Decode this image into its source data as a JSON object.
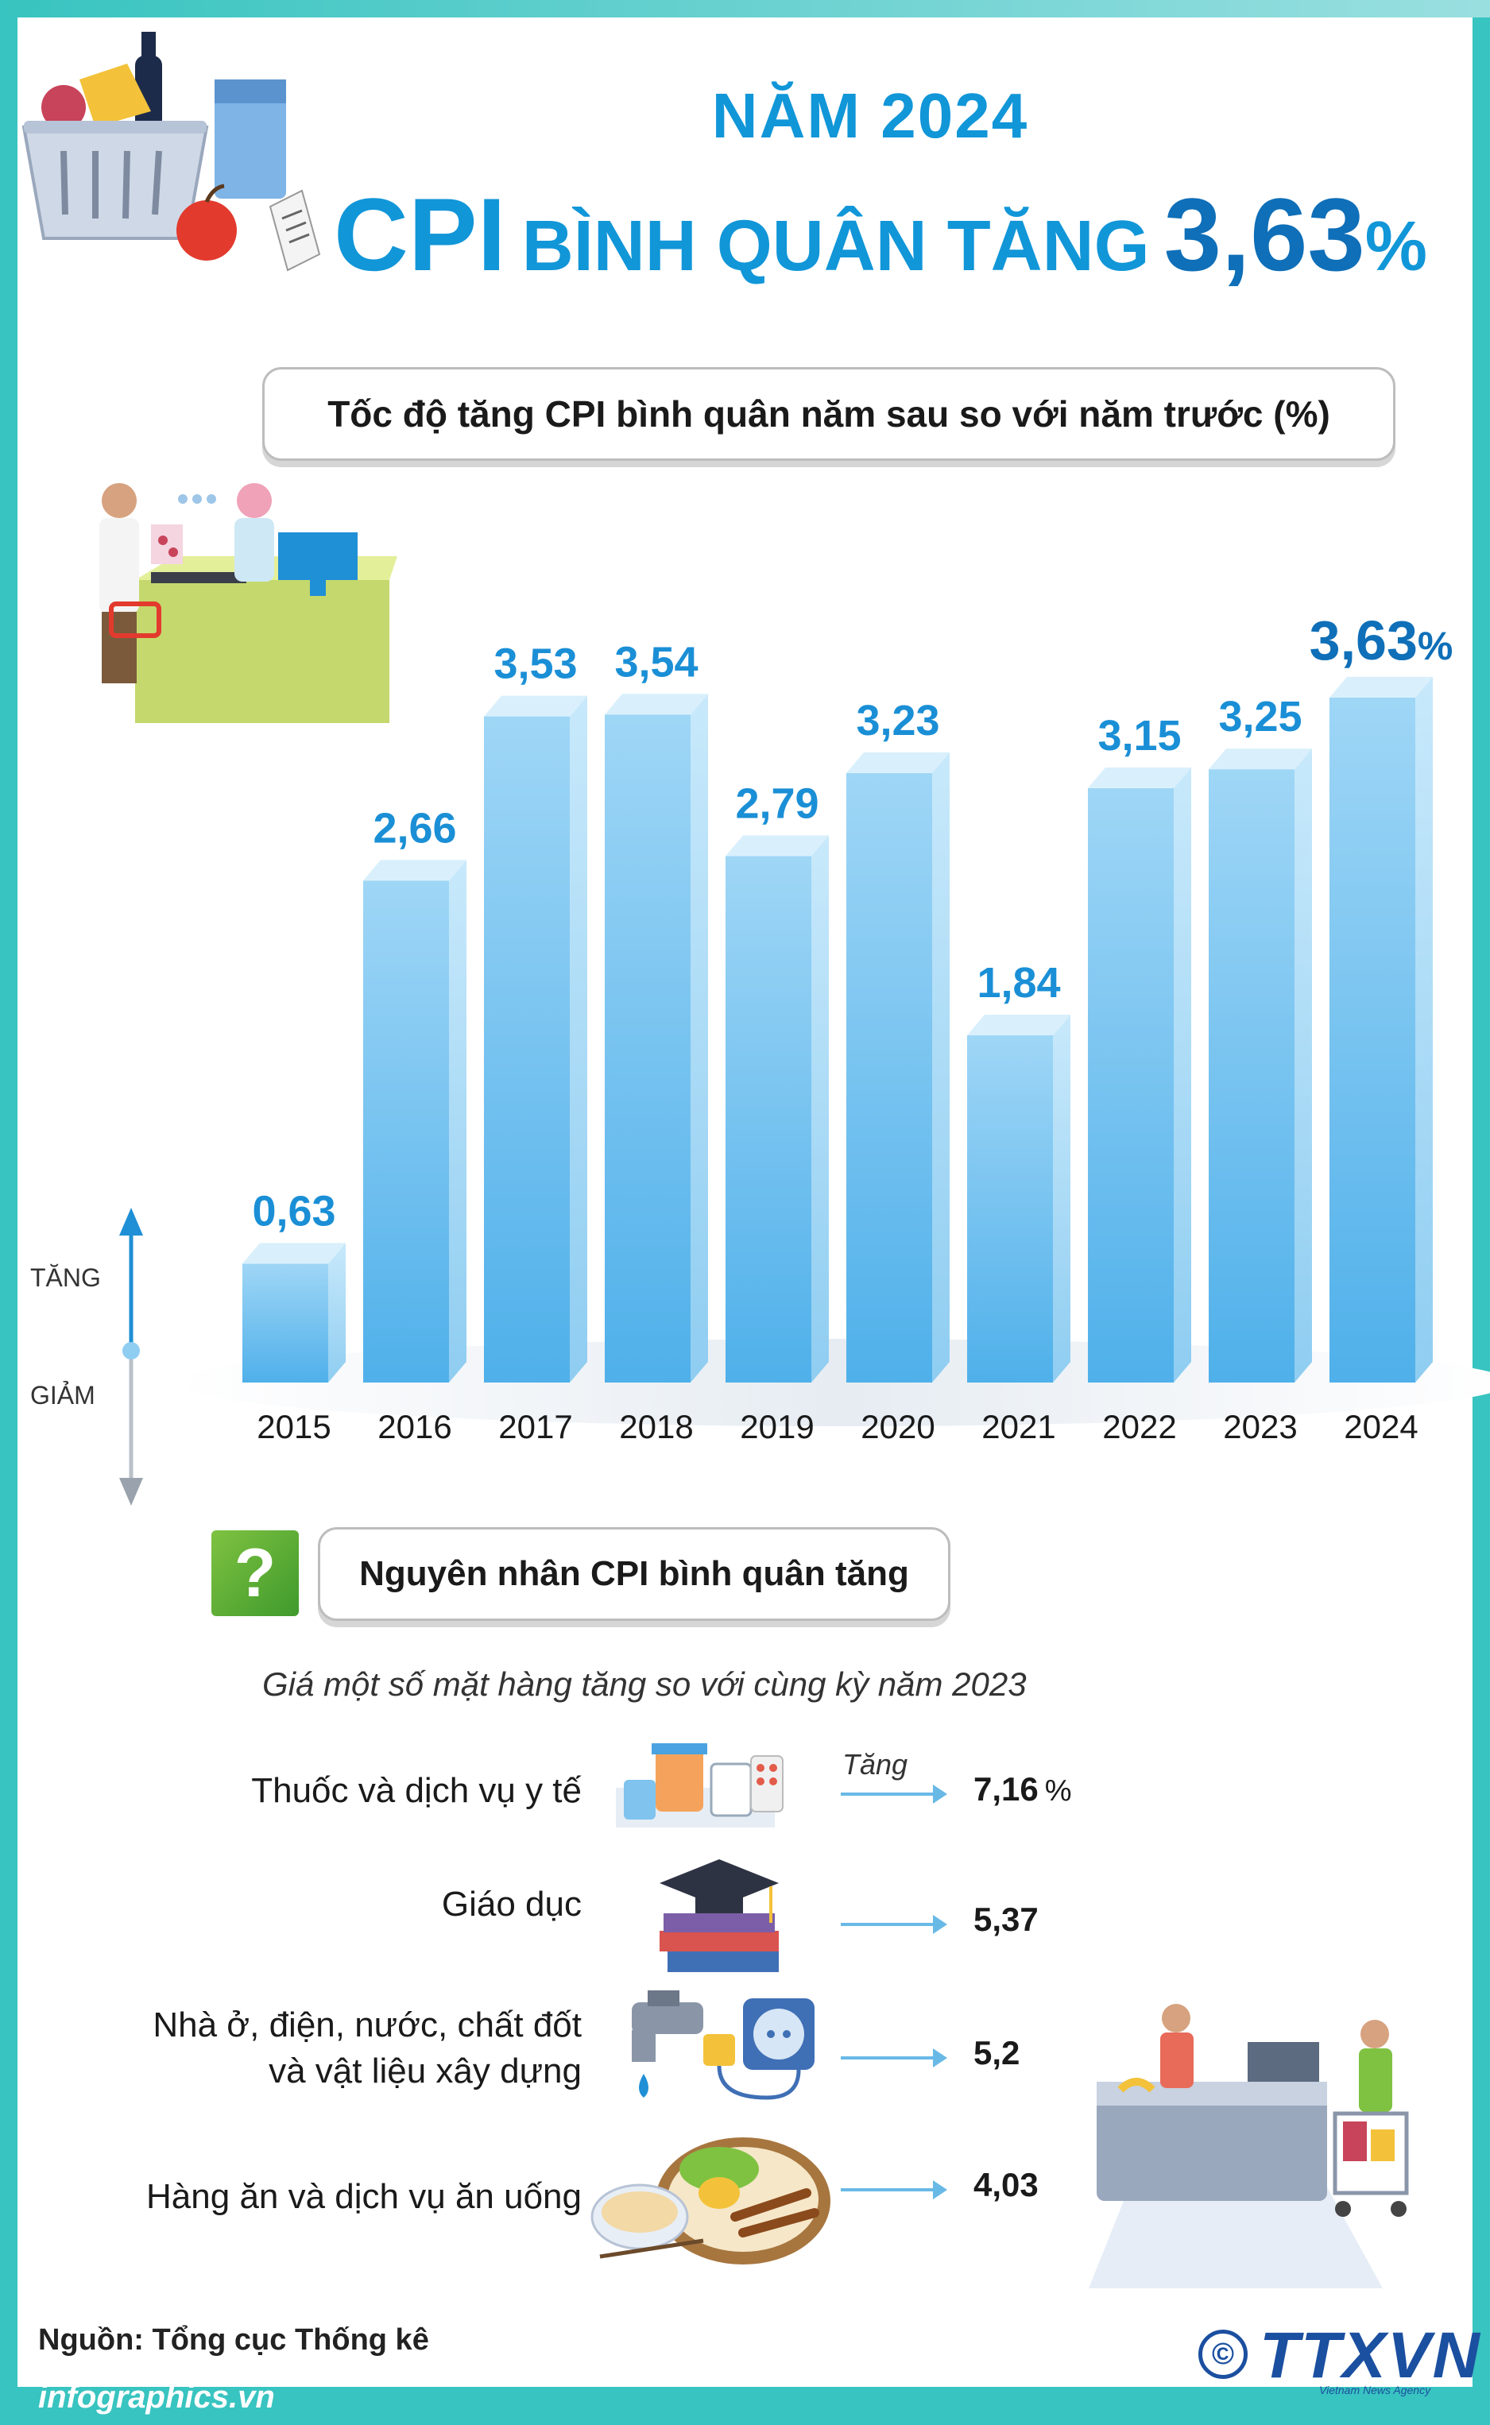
{
  "header": {
    "year_title": "NĂM 2024",
    "headline_cpi": "CPI",
    "headline_mid": "BÌNH QUÂN TĂNG",
    "headline_value": "3,63",
    "headline_pct": "%"
  },
  "chart_title": "Tốc độ tăng CPI bình quân năm sau so với năm trước (%)",
  "axis": {
    "up_label": "TĂNG",
    "down_label": "GIẢM"
  },
  "chart_data": {
    "type": "bar",
    "title": "Tốc độ tăng CPI bình quân năm sau so với năm trước (%)",
    "categories": [
      "2015",
      "2016",
      "2017",
      "2018",
      "2019",
      "2020",
      "2021",
      "2022",
      "2023",
      "2024"
    ],
    "values": [
      0.63,
      2.66,
      3.53,
      3.54,
      2.79,
      3.23,
      1.84,
      3.15,
      3.25,
      3.63
    ],
    "value_labels": [
      "0,63",
      "2,66",
      "3,53",
      "3,54",
      "2,79",
      "3,23",
      "1,84",
      "3,15",
      "3,25",
      "3,63"
    ],
    "highlight_suffix": "%",
    "ylim": [
      0,
      4
    ],
    "grid": false,
    "bar_color": "#5fb6ea",
    "label_color": "#1a8fd6",
    "highlight_color": "#0f6fb8"
  },
  "reasons": {
    "title": "Nguyên nhân CPI bình quân tăng",
    "badge": "?",
    "subtitle": "Giá một số mặt hàng tăng so với cùng kỳ năm 2023",
    "tang_label": "Tăng",
    "items": [
      {
        "label_lines": [
          "Thuốc và dịch vụ y tế"
        ],
        "value": "7,16",
        "unit": "%"
      },
      {
        "label_lines": [
          "Giáo dục"
        ],
        "value": "5,37",
        "unit": ""
      },
      {
        "label_lines": [
          "Nhà ở, điện, nước, chất đốt",
          "và vật liệu xây dựng"
        ],
        "value": "5,2",
        "unit": ""
      },
      {
        "label_lines": [
          "Hàng ăn và dịch vụ ăn uống"
        ],
        "value": "4,03",
        "unit": ""
      }
    ]
  },
  "footer": {
    "source": "Nguồn: Tổng cục Thống kê",
    "site": "infographics.vn",
    "logo": "TTXVN",
    "logo_sub": "Vietnam News Agency",
    "copyright": "©"
  },
  "colors": {
    "frame": "#38c4c0",
    "title_blue": "#1196d8",
    "badge_green": "#5aad35"
  },
  "icons": [
    "shopping-basket-icon",
    "shop-counter-icon",
    "medicine-icon",
    "graduation-cap-books-icon",
    "faucet-plug-icon",
    "food-plate-icon",
    "supermarket-checkout-icon"
  ]
}
